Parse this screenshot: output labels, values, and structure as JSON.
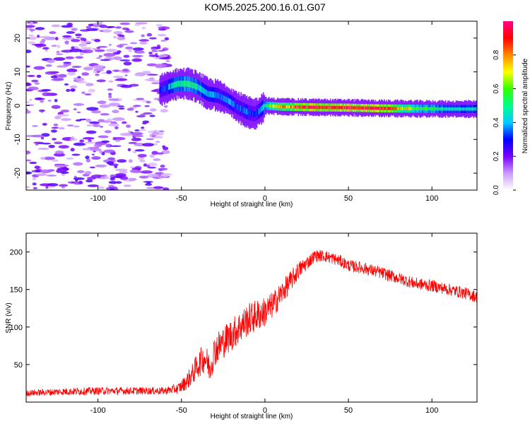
{
  "title": "KOM5.2025.200.16.01.G07",
  "chart_data": [
    {
      "type": "heatmap",
      "xlabel": "Height of straight line (km)",
      "ylabel": "Frequency (Hz)",
      "xlim": [
        -143,
        127
      ],
      "ylim": [
        -25,
        25
      ],
      "xticks": [
        -100,
        -50,
        0,
        50,
        100
      ],
      "yticks": [
        -20,
        -10,
        0,
        10,
        20
      ],
      "grid": false,
      "colorbar": {
        "label": "Normalized spectral amplitude",
        "range": [
          0,
          1
        ],
        "ticks": [
          "0.0",
          "0.2",
          "0.4",
          "0.6",
          "0.8"
        ],
        "colors": [
          "#ffffff",
          "#cc99ff",
          "#7700ff",
          "#0000ff",
          "#00ccff",
          "#00ff88",
          "#33ff00",
          "#ffff00",
          "#ff8800",
          "#ff0000",
          "#ff0088"
        ]
      },
      "noise_region_x": [
        -143,
        -58
      ],
      "noise_level": 0.1,
      "ridge": {
        "x": [
          -63,
          -58,
          -52,
          -46,
          -40,
          -34,
          -28,
          -22,
          -16,
          -10,
          -6,
          -3,
          0,
          10,
          30,
          50,
          70,
          90,
          110,
          127
        ],
        "y": [
          4.5,
          5.5,
          6.5,
          6.5,
          5.5,
          3.5,
          3.0,
          1.5,
          -0.5,
          -2.0,
          -2.5,
          -1.5,
          0.0,
          -0.3,
          -0.5,
          -0.6,
          -0.8,
          -0.9,
          -1.0,
          -1.0
        ],
        "amplitude": [
          0.3,
          0.35,
          0.5,
          0.55,
          0.45,
          0.4,
          0.35,
          0.4,
          0.35,
          0.35,
          0.3,
          0.35,
          0.5,
          0.8,
          0.95,
          0.9,
          0.95,
          0.6,
          0.45,
          0.45
        ]
      }
    },
    {
      "type": "line",
      "xlabel": "Height of straight line (km)",
      "ylabel": "SNR (v/v)",
      "xlim": [
        -143,
        127
      ],
      "ylim": [
        0,
        225
      ],
      "xticks": [
        -100,
        -50,
        0,
        50,
        100
      ],
      "yticks": [
        50,
        100,
        150,
        200
      ],
      "grid": false,
      "color": "#ff0000",
      "series": [
        {
          "x": [
            -143,
            -120,
            -100,
            -80,
            -60,
            -52,
            -48,
            -44,
            -40,
            -36,
            -33,
            -30,
            -25,
            -20,
            -15,
            -10,
            -5,
            0,
            5,
            10,
            15,
            20,
            25,
            30,
            35,
            40,
            45,
            50,
            60,
            70,
            80,
            90,
            100,
            110,
            120,
            127
          ],
          "values": [
            12,
            14,
            15,
            15,
            15,
            18,
            25,
            35,
            50,
            60,
            45,
            70,
            80,
            90,
            100,
            110,
            115,
            120,
            130,
            145,
            160,
            175,
            185,
            195,
            195,
            192,
            188,
            182,
            178,
            172,
            165,
            158,
            155,
            150,
            145,
            140
          ],
          "noise": [
            4,
            5,
            5,
            5,
            5,
            7,
            10,
            14,
            18,
            20,
            20,
            22,
            22,
            22,
            22,
            22,
            22,
            20,
            18,
            16,
            14,
            12,
            10,
            8,
            8,
            8,
            8,
            8,
            8,
            8,
            8,
            8,
            8,
            8,
            8,
            8
          ]
        }
      ]
    }
  ]
}
